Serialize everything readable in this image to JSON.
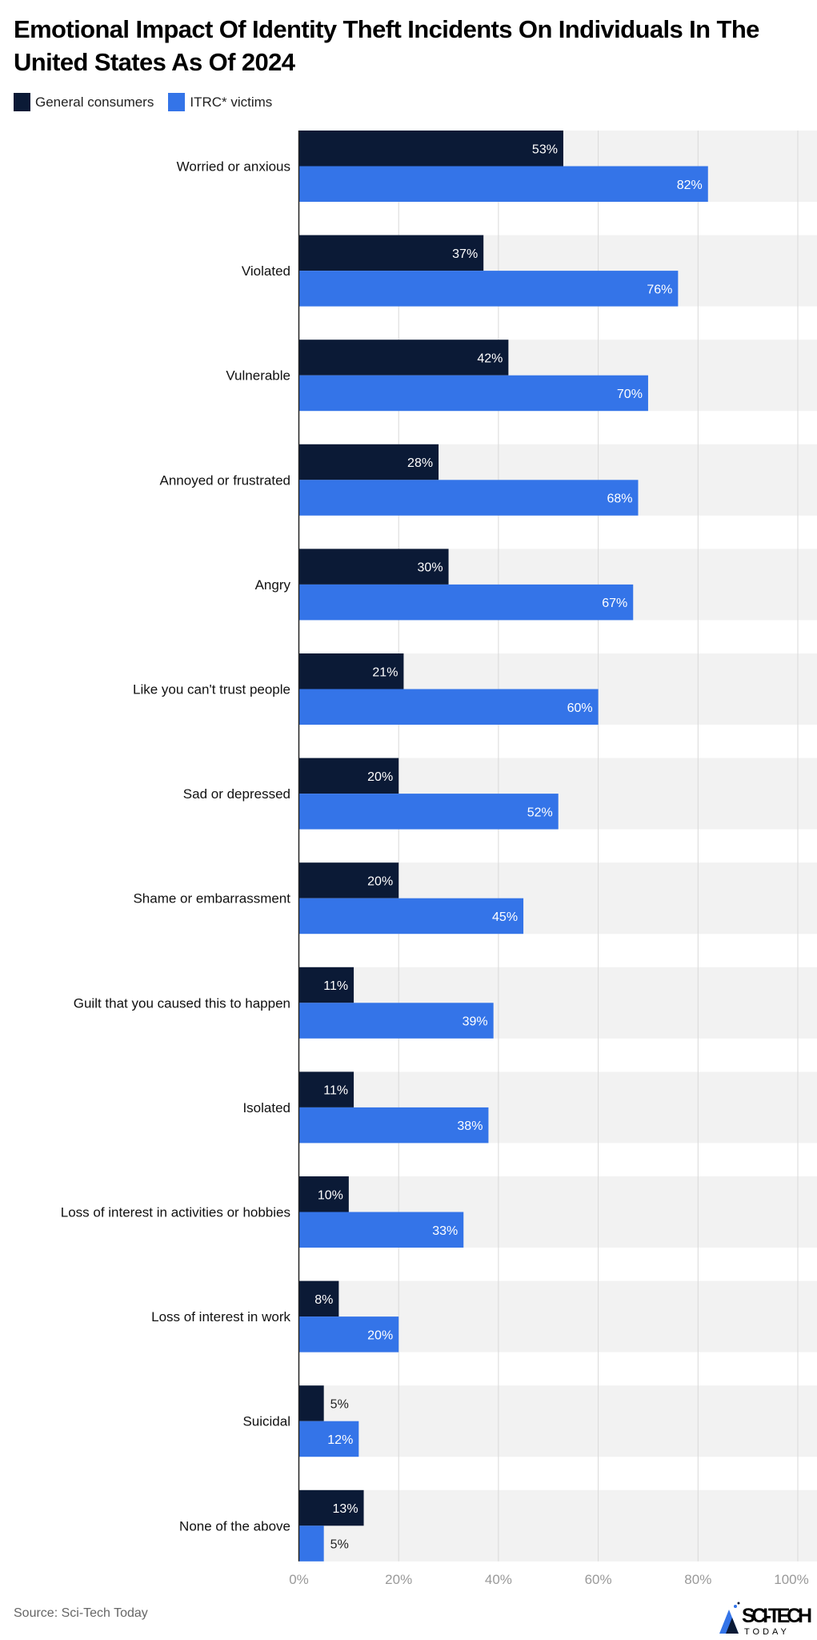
{
  "chart_data": {
    "type": "bar",
    "orientation": "horizontal",
    "title": "Emotional Impact Of Identity Theft Incidents On Individuals In The United States As Of 2024",
    "categories": [
      "Worried or anxious",
      "Violated",
      "Vulnerable",
      "Annoyed or frustrated",
      "Angry",
      "Like you can't trust people",
      "Sad or depressed",
      "Shame or embarrassment",
      "Guilt that you caused this to happen",
      "Isolated",
      "Loss of interest in activities or hobbies",
      "Loss of interest in work",
      "Suicidal",
      "None of the above"
    ],
    "series": [
      {
        "name": "General consumers",
        "color": "#0b1a36",
        "values": [
          53,
          37,
          42,
          28,
          30,
          21,
          20,
          20,
          11,
          11,
          10,
          8,
          5,
          13
        ]
      },
      {
        "name": "ITRC* victims",
        "color": "#3474e8",
        "values": [
          82,
          76,
          70,
          68,
          67,
          60,
          52,
          45,
          39,
          38,
          33,
          20,
          12,
          5
        ]
      }
    ],
    "xlim": [
      0,
      100
    ],
    "xticks": [
      "0%",
      "20%",
      "40%",
      "60%",
      "80%",
      "100%"
    ],
    "value_suffix": "%",
    "grid": true,
    "legend_placement": "top-left"
  },
  "source": "Source: Sci-Tech Today",
  "logo": {
    "text": "SCI-TECH",
    "subtext": "TODAY"
  }
}
